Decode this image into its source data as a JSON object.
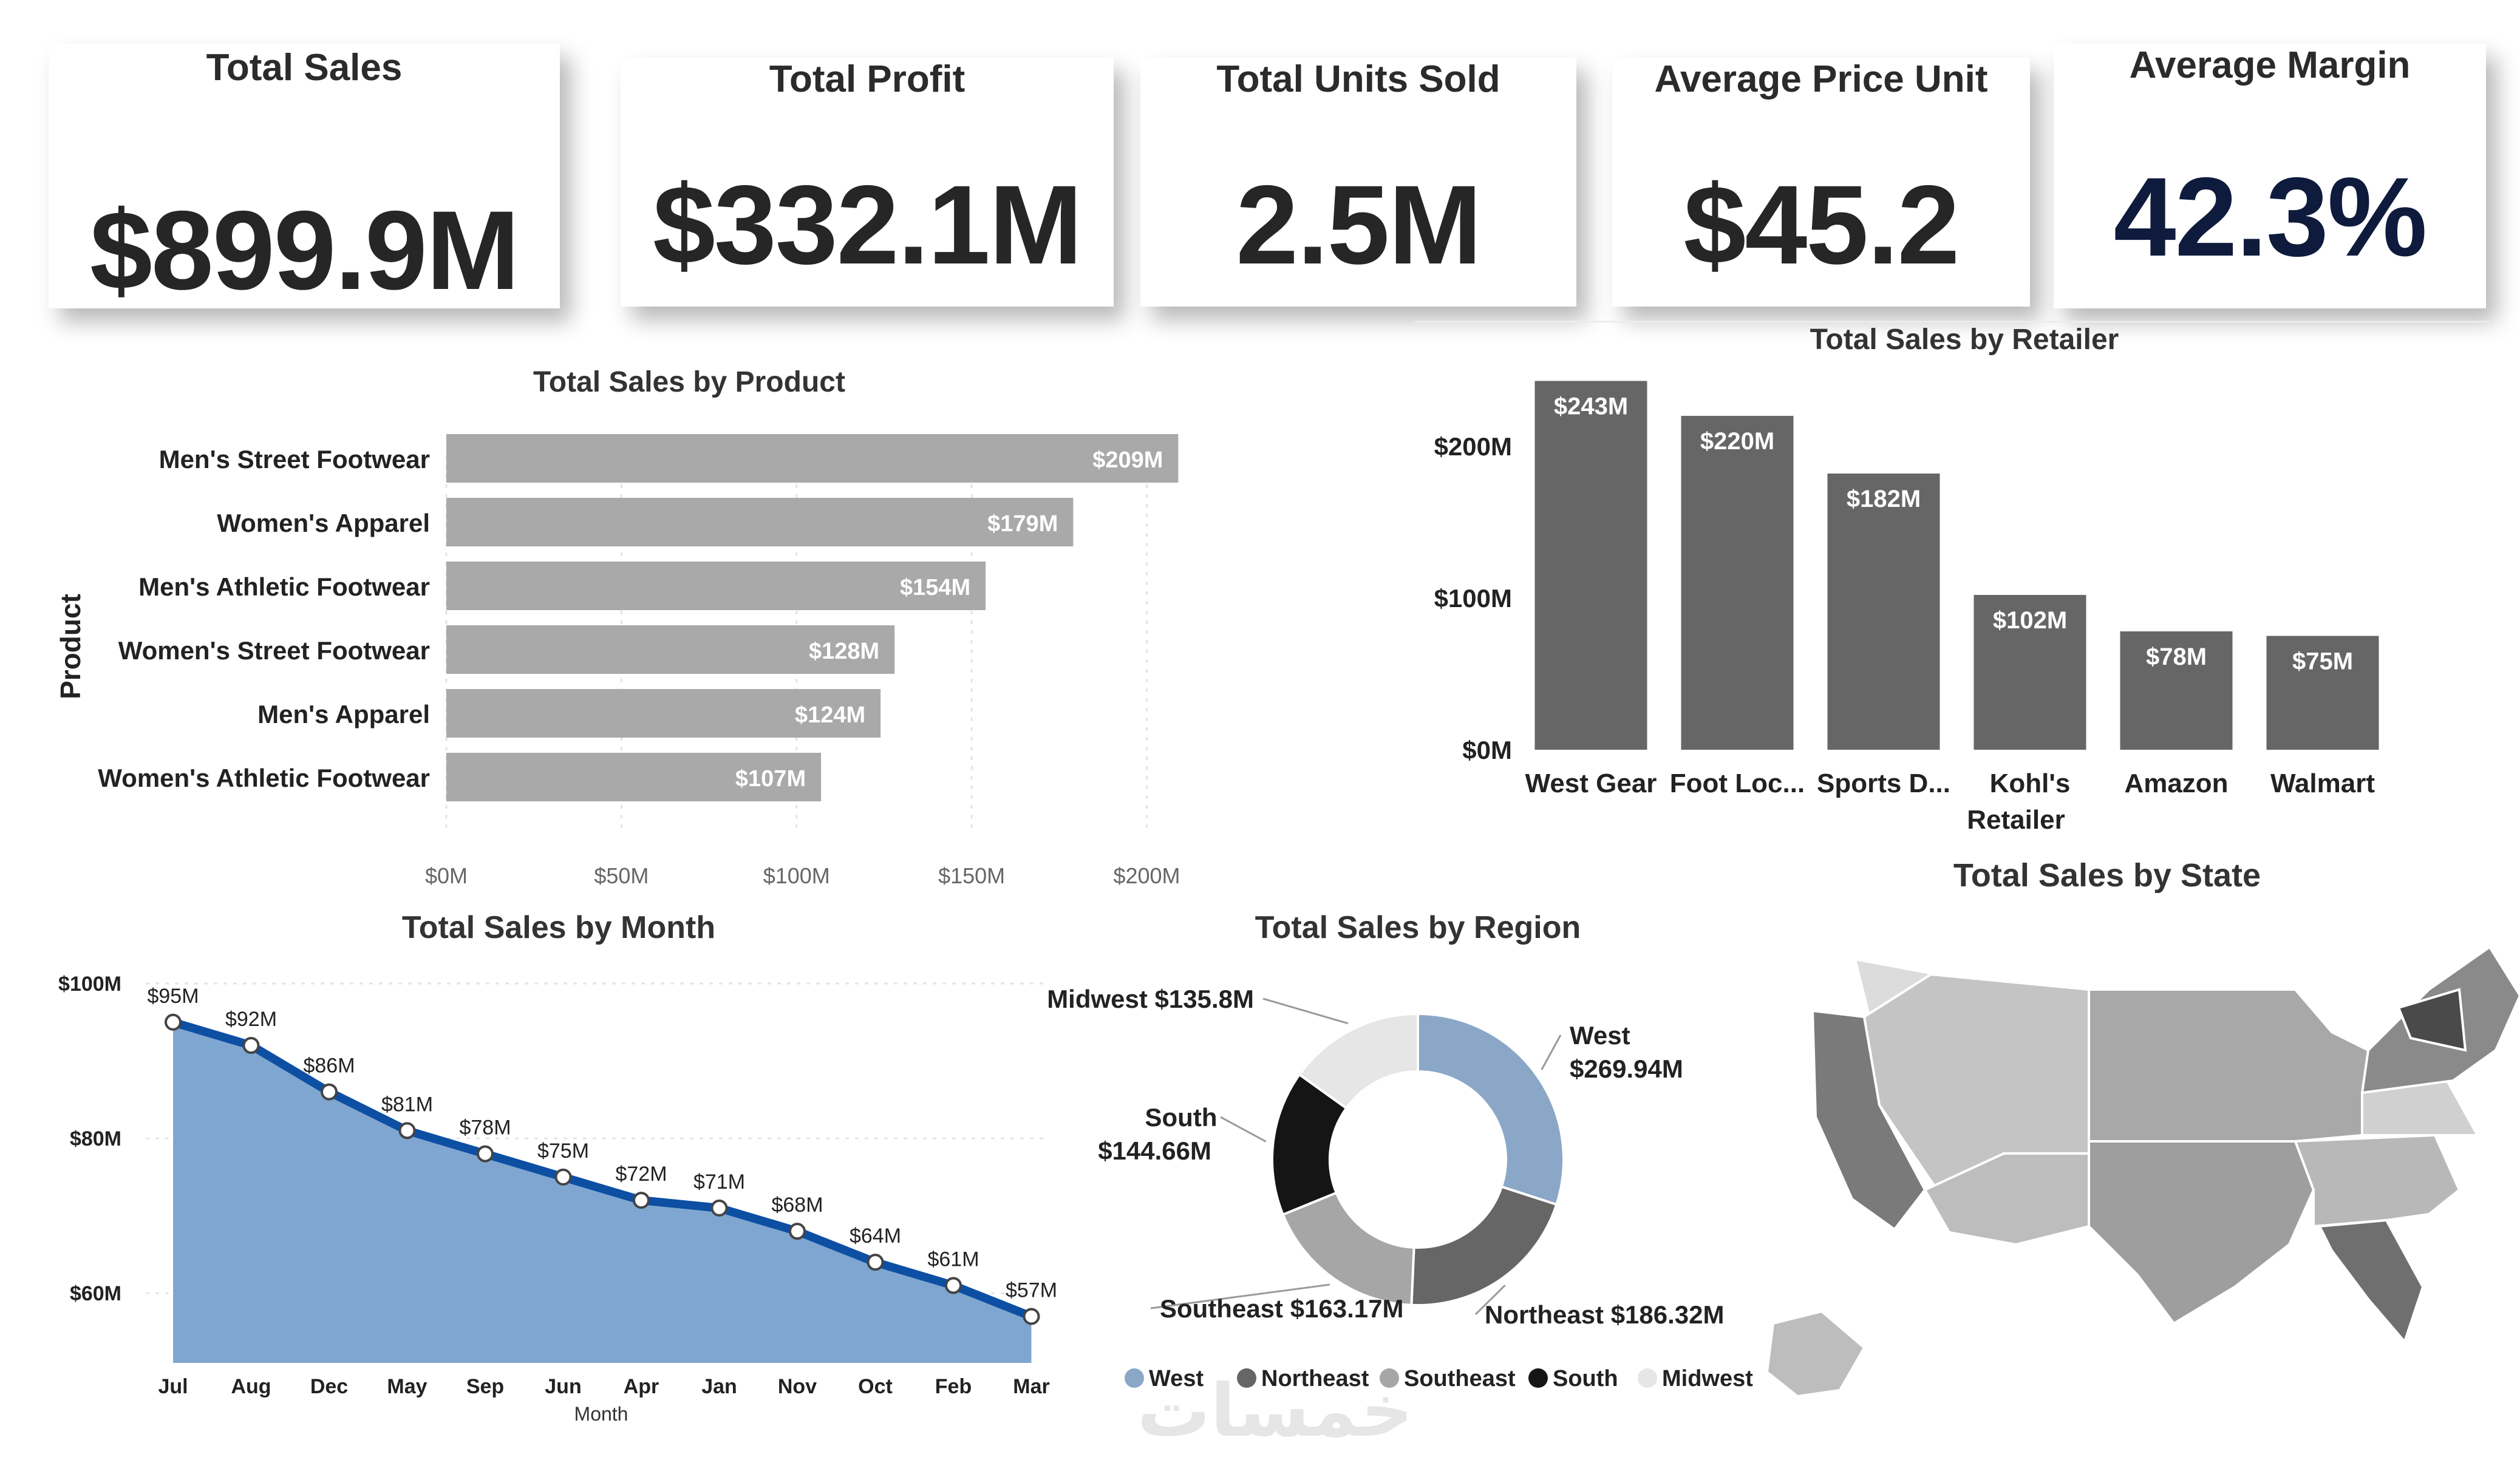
{
  "kpis": [
    {
      "title": "Total Sales",
      "value": "$899.9M"
    },
    {
      "title": "Total Profit",
      "value": "$332.1M"
    },
    {
      "title": "Total Units Sold",
      "value": "2.5M"
    },
    {
      "title": "Average Price Unit",
      "value": "$45.2"
    },
    {
      "title": "Average Margin",
      "value": "42.3%"
    }
  ],
  "colors": {
    "bar_product": "#a9a9a9",
    "bar_retailer": "#666666",
    "area_fill": "#7fa6d0",
    "line": "#0d4fa3",
    "kpi_margin": "#0f1b3d",
    "west": "#8aa7c7",
    "northeast": "#666666",
    "southeast": "#a6a6a6",
    "south": "#151515",
    "midwest": "#e6e6e6"
  },
  "chart_data": [
    {
      "id": "product",
      "type": "bar",
      "orientation": "horizontal",
      "title": "Total Sales by Product",
      "ylabel": "Product",
      "categories": [
        "Men's Street Footwear",
        "Women's Apparel",
        "Men's Athletic Footwear",
        "Women's Street Footwear",
        "Men's Apparel",
        "Women's Athletic Footwear"
      ],
      "values": [
        209,
        179,
        154,
        128,
        124,
        107
      ],
      "labels": [
        "$209M",
        "$179M",
        "$154M",
        "$128M",
        "$124M",
        "$107M"
      ],
      "ticks": [
        0,
        50,
        100,
        150,
        200
      ],
      "tick_labels": [
        "$0M",
        "$50M",
        "$100M",
        "$150M",
        "$200M"
      ],
      "xlim": [
        0,
        215
      ]
    },
    {
      "id": "retailer",
      "type": "bar",
      "title": "Total Sales by Retailer",
      "xlabel": "Retailer",
      "categories": [
        "West Gear",
        "Foot Loc...",
        "Sports D...",
        "Kohl's",
        "Amazon",
        "Walmart"
      ],
      "values": [
        243,
        220,
        182,
        102,
        78,
        75
      ],
      "labels": [
        "$243M",
        "$220M",
        "$182M",
        "$102M",
        "$78M",
        "$75M"
      ],
      "ticks": [
        0,
        100,
        200
      ],
      "tick_labels": [
        "$0M",
        "$100M",
        "$200M"
      ],
      "ylim": [
        0,
        250
      ]
    },
    {
      "id": "month",
      "type": "area",
      "title": "Total Sales by Month",
      "xlabel": "Month",
      "categories": [
        "Jul",
        "Aug",
        "Dec",
        "May",
        "Sep",
        "Jun",
        "Apr",
        "Jan",
        "Nov",
        "Oct",
        "Feb",
        "Mar"
      ],
      "values": [
        95,
        92,
        86,
        81,
        78,
        75,
        72,
        71,
        68,
        64,
        61,
        57
      ],
      "labels": [
        "$95M",
        "$92M",
        "$86M",
        "$81M",
        "$78M",
        "$75M",
        "$72M",
        "$71M",
        "$68M",
        "$64M",
        "$61M",
        "$57M"
      ],
      "ticks": [
        60,
        80,
        100
      ],
      "tick_labels": [
        "$60M",
        "$80M",
        "$100M"
      ],
      "ylim": [
        51,
        100
      ]
    },
    {
      "id": "region",
      "type": "pie",
      "donut": true,
      "title": "Total Sales by Region",
      "categories": [
        "West",
        "Northeast",
        "Southeast",
        "South",
        "Midwest"
      ],
      "values": [
        269.94,
        186.32,
        163.17,
        144.66,
        135.8
      ],
      "labels": [
        "West $269.94M",
        "Northeast $186.32M",
        "Southeast $163.17M",
        "South $144.66M",
        "Midwest $135.8M"
      ],
      "legend": [
        "West",
        "Northeast",
        "Southeast",
        "South",
        "Midwest"
      ]
    }
  ],
  "map": {
    "title": "Total Sales by State"
  },
  "watermark": "خمسات"
}
